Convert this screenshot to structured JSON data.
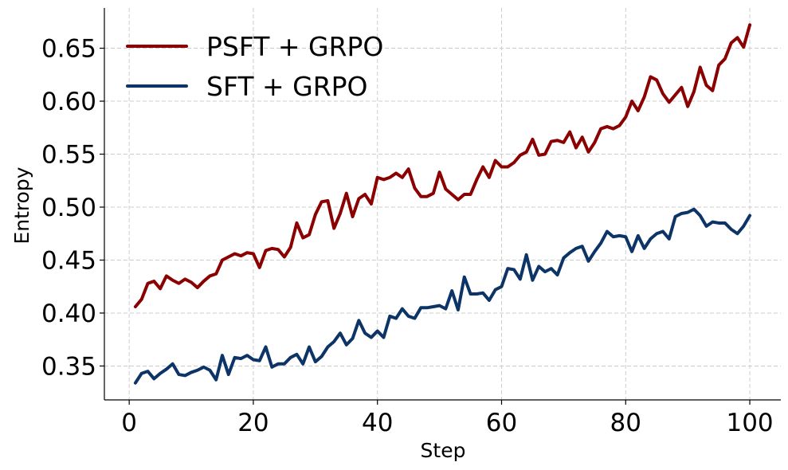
{
  "chart_data": {
    "type": "line",
    "title": "",
    "xlabel": "Step",
    "ylabel": "Entropy",
    "xlim": [
      -4,
      105
    ],
    "ylim": [
      0.318,
      0.688
    ],
    "xticks": [
      0,
      20,
      40,
      60,
      80,
      100
    ],
    "yticks": [
      0.35,
      0.4,
      0.45,
      0.5,
      0.55,
      0.6,
      0.65
    ],
    "ytick_labels": [
      "0.35",
      "0.40",
      "0.45",
      "0.50",
      "0.55",
      "0.60",
      "0.65"
    ],
    "xtick_labels": [
      "0",
      "20",
      "40",
      "60",
      "80",
      "100"
    ],
    "grid": true,
    "legend_position": "top-left",
    "series": [
      {
        "name": "PSFT + GRPO",
        "color": "#8b0000",
        "x": [
          1,
          2,
          3,
          4,
          5,
          6,
          7,
          8,
          9,
          10,
          11,
          12,
          13,
          14,
          15,
          16,
          17,
          18,
          19,
          20,
          21,
          22,
          23,
          24,
          25,
          26,
          27,
          28,
          29,
          30,
          31,
          32,
          33,
          34,
          35,
          36,
          37,
          38,
          39,
          40,
          41,
          42,
          43,
          44,
          45,
          46,
          47,
          48,
          49,
          50,
          51,
          52,
          53,
          54,
          55,
          56,
          57,
          58,
          59,
          60,
          61,
          62,
          63,
          64,
          65,
          66,
          67,
          68,
          69,
          70,
          71,
          72,
          73,
          74,
          75,
          76,
          77,
          78,
          79,
          80,
          81,
          82,
          83,
          84,
          85,
          86,
          87,
          88,
          89,
          90,
          91,
          92,
          93,
          94,
          95,
          96,
          97,
          98,
          99,
          100
        ],
        "y": [
          0.406,
          0.413,
          0.428,
          0.43,
          0.423,
          0.435,
          0.431,
          0.428,
          0.432,
          0.429,
          0.424,
          0.43,
          0.435,
          0.437,
          0.45,
          0.453,
          0.456,
          0.454,
          0.457,
          0.456,
          0.443,
          0.459,
          0.461,
          0.46,
          0.453,
          0.462,
          0.485,
          0.471,
          0.474,
          0.493,
          0.505,
          0.506,
          0.48,
          0.494,
          0.513,
          0.491,
          0.508,
          0.512,
          0.503,
          0.528,
          0.526,
          0.528,
          0.532,
          0.528,
          0.536,
          0.518,
          0.51,
          0.51,
          0.513,
          0.533,
          0.517,
          0.512,
          0.507,
          0.512,
          0.512,
          0.526,
          0.538,
          0.528,
          0.544,
          0.538,
          0.538,
          0.542,
          0.549,
          0.552,
          0.564,
          0.549,
          0.55,
          0.562,
          0.563,
          0.561,
          0.571,
          0.556,
          0.566,
          0.552,
          0.561,
          0.574,
          0.576,
          0.574,
          0.577,
          0.585,
          0.6,
          0.591,
          0.604,
          0.623,
          0.62,
          0.607,
          0.599,
          0.606,
          0.613,
          0.595,
          0.609,
          0.632,
          0.615,
          0.61,
          0.634,
          0.64,
          0.655,
          0.66,
          0.651,
          0.672
        ]
      },
      {
        "name": "SFT + GRPO",
        "color": "#0d3466",
        "x": [
          1,
          2,
          3,
          4,
          5,
          6,
          7,
          8,
          9,
          10,
          11,
          12,
          13,
          14,
          15,
          16,
          17,
          18,
          19,
          20,
          21,
          22,
          23,
          24,
          25,
          26,
          27,
          28,
          29,
          30,
          31,
          32,
          33,
          34,
          35,
          36,
          37,
          38,
          39,
          40,
          41,
          42,
          43,
          44,
          45,
          46,
          47,
          48,
          49,
          50,
          51,
          52,
          53,
          54,
          55,
          56,
          57,
          58,
          59,
          60,
          61,
          62,
          63,
          64,
          65,
          66,
          67,
          68,
          69,
          70,
          71,
          72,
          73,
          74,
          75,
          76,
          77,
          78,
          79,
          80,
          81,
          82,
          83,
          84,
          85,
          86,
          87,
          88,
          89,
          90,
          91,
          92,
          93,
          94,
          95,
          96,
          97,
          98,
          99,
          100
        ],
        "y": [
          0.334,
          0.343,
          0.345,
          0.338,
          0.343,
          0.347,
          0.352,
          0.342,
          0.341,
          0.344,
          0.346,
          0.349,
          0.346,
          0.337,
          0.36,
          0.342,
          0.358,
          0.357,
          0.36,
          0.356,
          0.355,
          0.368,
          0.349,
          0.352,
          0.352,
          0.358,
          0.361,
          0.352,
          0.368,
          0.354,
          0.359,
          0.368,
          0.373,
          0.381,
          0.37,
          0.376,
          0.393,
          0.381,
          0.377,
          0.383,
          0.377,
          0.397,
          0.395,
          0.404,
          0.397,
          0.395,
          0.405,
          0.405,
          0.406,
          0.407,
          0.404,
          0.421,
          0.403,
          0.434,
          0.418,
          0.418,
          0.419,
          0.412,
          0.422,
          0.425,
          0.442,
          0.441,
          0.432,
          0.455,
          0.431,
          0.444,
          0.439,
          0.442,
          0.436,
          0.452,
          0.457,
          0.461,
          0.463,
          0.449,
          0.458,
          0.466,
          0.477,
          0.472,
          0.473,
          0.472,
          0.458,
          0.473,
          0.461,
          0.47,
          0.475,
          0.477,
          0.47,
          0.491,
          0.494,
          0.495,
          0.498,
          0.492,
          0.482,
          0.486,
          0.485,
          0.485,
          0.479,
          0.475,
          0.482,
          0.492
        ]
      }
    ]
  }
}
